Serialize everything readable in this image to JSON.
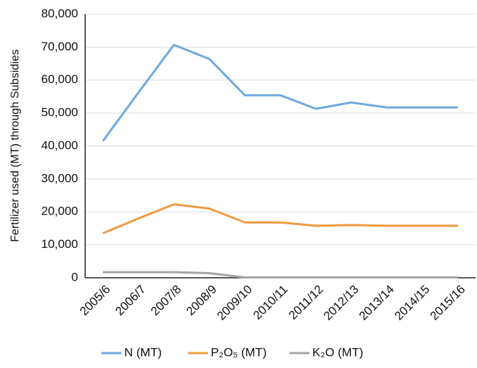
{
  "chart_data": {
    "type": "line",
    "y_label": "Fertilizer used (MT) through Subsidies",
    "categories": [
      "2005/6",
      "2006/7",
      "2007/8",
      "2008/9",
      "2009/10",
      "2010/11",
      "2011/12",
      "2012/13",
      "2013/14",
      "2014/15",
      "2015/16"
    ],
    "series": [
      {
        "name": "N (MT)",
        "color": "#6fa8dc",
        "values": [
          41500,
          56200,
          70700,
          66400,
          55400,
          55400,
          51300,
          53200,
          51700,
          51700,
          51700
        ]
      },
      {
        "name": "P₂O₅ (MT)",
        "color": "#f19a41",
        "values": [
          13500,
          18000,
          22300,
          21000,
          16800,
          16800,
          15800,
          16000,
          15800,
          15800,
          15800
        ]
      },
      {
        "name": "K₂O (MT)",
        "color": "#a5a5a5",
        "values": [
          1700,
          1700,
          1700,
          1400,
          100,
          100,
          100,
          100,
          100,
          100,
          100
        ]
      }
    ],
    "ylim": [
      0,
      80000
    ],
    "yticks": [
      0,
      {
        "value": 10000,
        "label": "10,000"
      },
      {
        "value": 20000,
        "label": "20,000"
      },
      {
        "value": 30000,
        "label": "30,000"
      },
      {
        "value": 40000,
        "label": "40,000"
      },
      {
        "value": 50000,
        "label": "50,000"
      },
      {
        "value": 60000,
        "label": "60,000"
      },
      {
        "value": 70000,
        "label": "70,000"
      },
      {
        "value": 80000,
        "label": "80,000"
      }
    ],
    "grid": true,
    "legend": "bottom"
  }
}
